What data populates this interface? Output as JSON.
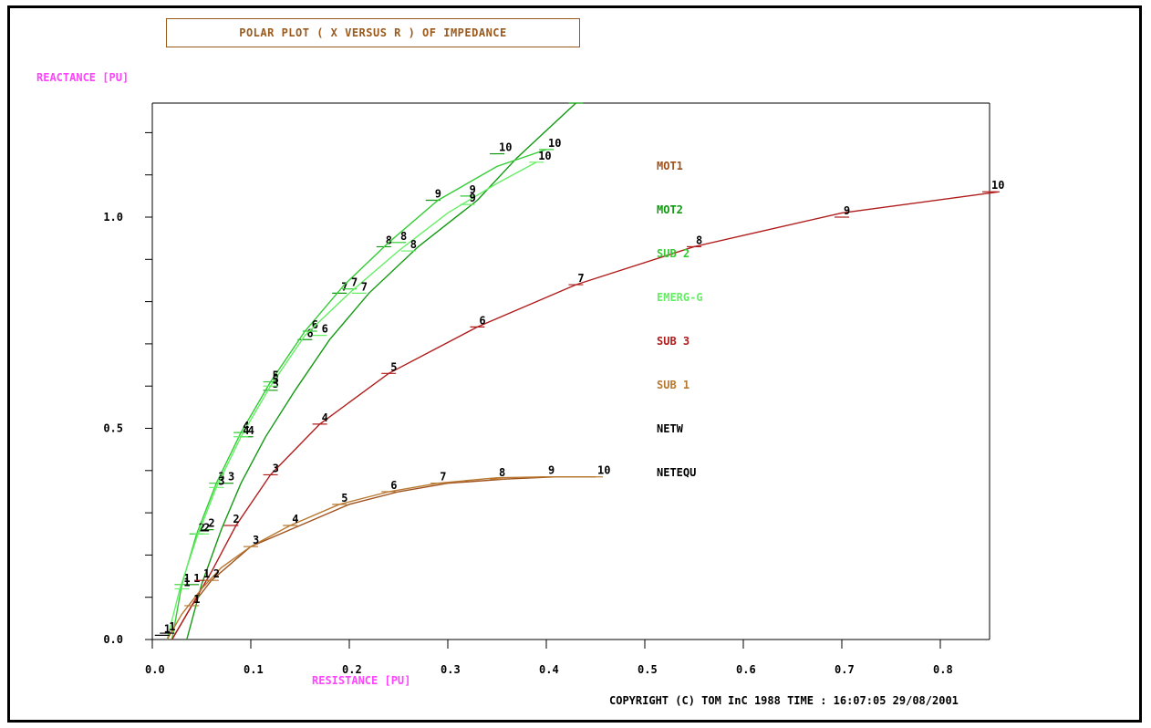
{
  "chart_data": {
    "type": "line",
    "title": "POLAR PLOT ( X VERSUS R ) OF IMPEDANCE",
    "xlabel": "RESISTANCE [PU]",
    "ylabel": "REACTANCE [PU]",
    "xlim": [
      0.0,
      0.85
    ],
    "ylim": [
      0.0,
      1.27
    ],
    "x_ticks": [
      0.0,
      0.1,
      0.2,
      0.3,
      0.4,
      0.5,
      0.6,
      0.7,
      0.8
    ],
    "x_tick_labels": [
      "0.0",
      "0.1",
      "0.2",
      "0.3",
      "0.4",
      "0.5",
      "0.6",
      "0.7",
      "0.8"
    ],
    "y_ticks": [
      0.0,
      0.1,
      0.2,
      0.3,
      0.4,
      0.5,
      0.6,
      0.7,
      0.8,
      0.9,
      1.0,
      1.1,
      1.2
    ],
    "y_tick_labels": [
      "0.0",
      "",
      "",
      "",
      "",
      "0.5",
      "",
      "",
      "",
      "",
      "1.0",
      "",
      ""
    ],
    "grid": false,
    "legend_position": "center-right",
    "marker_labels": [
      "1",
      "2",
      "3",
      "4",
      "5",
      "6",
      "7",
      "8",
      "9",
      "10"
    ],
    "series": [
      {
        "name": "MOT1",
        "color": "#a0521e",
        "x": [
          0.02,
          0.04,
          0.06,
          0.1,
          0.15,
          0.2,
          0.25,
          0.3,
          0.36,
          0.41,
          0.45
        ],
        "y": [
          0.0,
          0.08,
          0.14,
          0.22,
          0.27,
          0.32,
          0.35,
          0.37,
          0.38,
          0.385,
          0.385
        ],
        "markers": []
      },
      {
        "name": "MOT2",
        "color": "#119911",
        "x": [
          0.035,
          0.05,
          0.07,
          0.09,
          0.115,
          0.145,
          0.18,
          0.22,
          0.27,
          0.33,
          0.37,
          0.43
        ],
        "y": [
          0.0,
          0.13,
          0.26,
          0.37,
          0.48,
          0.59,
          0.71,
          0.82,
          0.93,
          1.04,
          1.14,
          1.27
        ],
        "markers": [
          [
            0.04,
            0.13
          ],
          [
            0.055,
            0.26
          ],
          [
            0.075,
            0.37
          ],
          [
            0.095,
            0.48
          ],
          [
            0.12,
            0.59
          ],
          [
            0.155,
            0.71
          ],
          [
            0.19,
            0.82
          ],
          [
            0.235,
            0.93
          ],
          [
            0.285,
            1.04
          ],
          [
            0.35,
            1.15
          ],
          [
            0.43,
            1.27
          ]
        ]
      },
      {
        "name": "SUB 2",
        "color": "#33cc33",
        "x": [
          0.02,
          0.03,
          0.045,
          0.065,
          0.09,
          0.12,
          0.155,
          0.195,
          0.24,
          0.29,
          0.35,
          0.4
        ],
        "y": [
          0.0,
          0.13,
          0.25,
          0.37,
          0.49,
          0.61,
          0.73,
          0.84,
          0.94,
          1.04,
          1.12,
          1.16
        ],
        "markers": [
          [
            0.03,
            0.13
          ],
          [
            0.045,
            0.25
          ],
          [
            0.065,
            0.37
          ],
          [
            0.09,
            0.49
          ],
          [
            0.12,
            0.61
          ],
          [
            0.16,
            0.73
          ],
          [
            0.2,
            0.83
          ],
          [
            0.25,
            0.94
          ],
          [
            0.32,
            1.05
          ],
          [
            0.4,
            1.16
          ]
        ]
      },
      {
        "name": "EMERG-G",
        "color": "#66ee66",
        "x": [
          0.015,
          0.028,
          0.045,
          0.065,
          0.09,
          0.12,
          0.155,
          0.2,
          0.25,
          0.3,
          0.35,
          0.39
        ],
        "y": [
          0.0,
          0.12,
          0.24,
          0.36,
          0.48,
          0.6,
          0.72,
          0.82,
          0.92,
          1.01,
          1.08,
          1.13
        ],
        "markers": [
          [
            0.03,
            0.12
          ],
          [
            0.05,
            0.25
          ],
          [
            0.065,
            0.36
          ],
          [
            0.09,
            0.48
          ],
          [
            0.12,
            0.6
          ],
          [
            0.17,
            0.72
          ],
          [
            0.21,
            0.82
          ],
          [
            0.26,
            0.92
          ],
          [
            0.32,
            1.03
          ],
          [
            0.39,
            1.13
          ]
        ]
      },
      {
        "name": "SUB 3",
        "color": "#b01c1c",
        "x": [
          0.02,
          0.04,
          0.06,
          0.085,
          0.12,
          0.17,
          0.24,
          0.33,
          0.43,
          0.55,
          0.7,
          0.86
        ],
        "y": [
          0.0,
          0.08,
          0.16,
          0.27,
          0.39,
          0.51,
          0.63,
          0.74,
          0.84,
          0.93,
          1.01,
          1.06
        ],
        "markers": [
          [
            0.05,
            0.14
          ],
          [
            0.08,
            0.27
          ],
          [
            0.12,
            0.39
          ],
          [
            0.17,
            0.51
          ],
          [
            0.24,
            0.63
          ],
          [
            0.33,
            0.74
          ],
          [
            0.43,
            0.84
          ],
          [
            0.55,
            0.93
          ],
          [
            0.7,
            1.0
          ],
          [
            0.85,
            1.06
          ]
        ]
      },
      {
        "name": "SUB 1",
        "color": "#b87830",
        "x": [
          0.015,
          0.03,
          0.05,
          0.07,
          0.1,
          0.14,
          0.19,
          0.24,
          0.29,
          0.35,
          0.4,
          0.45
        ],
        "y": [
          0.0,
          0.06,
          0.12,
          0.17,
          0.22,
          0.27,
          0.32,
          0.35,
          0.37,
          0.383,
          0.385,
          0.385
        ],
        "markers": [
          [
            0.04,
            0.08
          ],
          [
            0.06,
            0.14
          ],
          [
            0.1,
            0.22
          ],
          [
            0.14,
            0.27
          ],
          [
            0.19,
            0.32
          ],
          [
            0.24,
            0.35
          ],
          [
            0.29,
            0.37
          ],
          [
            0.35,
            0.38
          ],
          [
            0.4,
            0.385
          ],
          [
            0.45,
            0.385
          ]
        ]
      },
      {
        "name": "NETW",
        "color": "#000000",
        "x": [],
        "y": [],
        "markers": [
          [
            0.01,
            0.01
          ]
        ]
      },
      {
        "name": "NETEQU",
        "color": "#000000",
        "x": [],
        "y": [],
        "markers": [
          [
            0.015,
            0.015
          ]
        ]
      }
    ]
  },
  "footer": {
    "copyright": "COPYRIGHT (C) TOM InC 1988 TIME : 16:07:05 29/08/2001"
  },
  "colors": {
    "frame": "#000000",
    "axis_title": "#ff44ff",
    "title_text": "#9a5a1e"
  }
}
